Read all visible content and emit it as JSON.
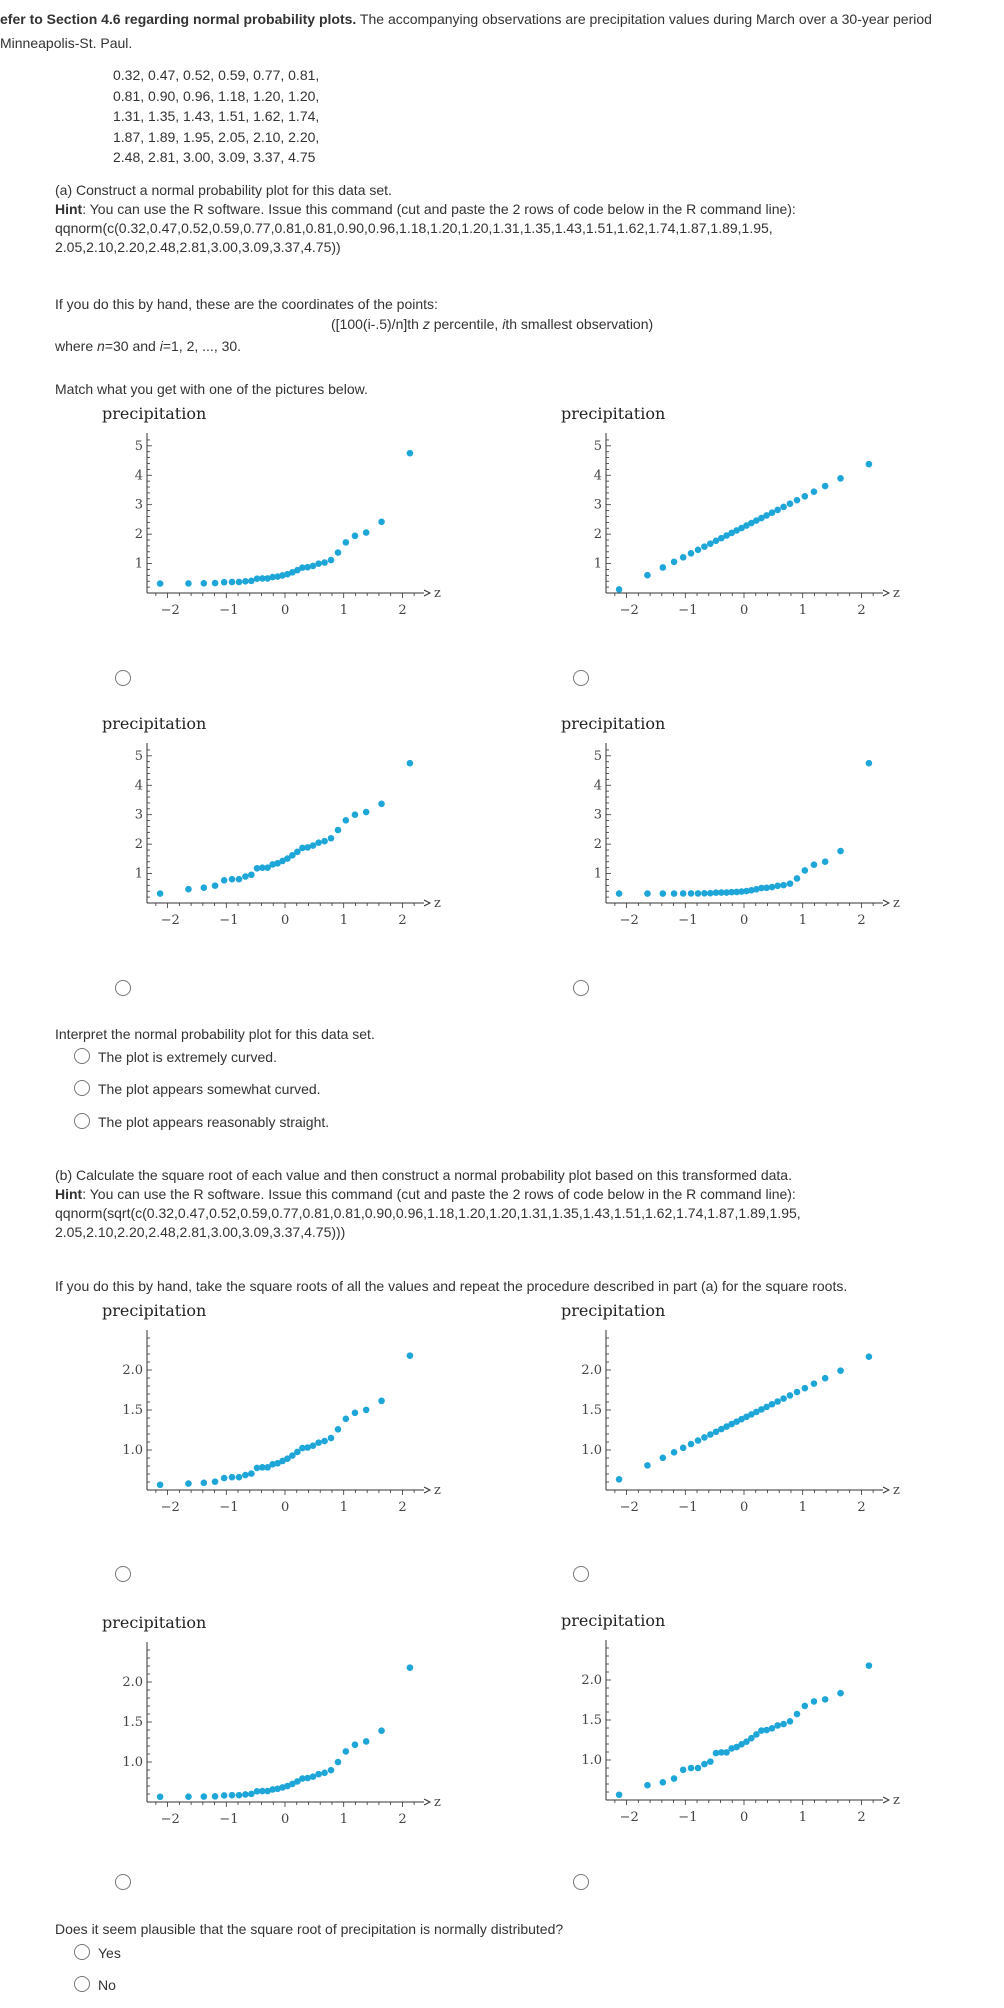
{
  "intro": {
    "bold": "efer to Section 4.6 regarding normal probability plots.",
    "rest": " The accompanying observations are precipitation values during March over a 30-year period",
    "line2": " Minneapolis-St. Paul."
  },
  "data_lines": [
    "0.32, 0.47, 0.52, 0.59, 0.77, 0.81,",
    "0.81, 0.90, 0.96, 1.18, 1.20, 1.20,",
    "1.31, 1.35, 1.43, 1.51, 1.62, 1.74,",
    "1.87, 1.89, 1.95, 2.05, 2.10, 2.20,",
    "2.48, 2.81, 3.00, 3.09, 3.37, 4.75"
  ],
  "observations": [
    0.32,
    0.47,
    0.52,
    0.59,
    0.77,
    0.81,
    0.81,
    0.9,
    0.96,
    1.18,
    1.2,
    1.2,
    1.31,
    1.35,
    1.43,
    1.51,
    1.62,
    1.74,
    1.87,
    1.89,
    1.95,
    2.05,
    2.1,
    2.2,
    2.48,
    2.81,
    3.0,
    3.09,
    3.37,
    4.75
  ],
  "part_a": {
    "title": "(a) Construct a normal probability plot for this data set.",
    "hint_label": "Hint",
    "hint_text": ": You can use the R software. Issue this command (cut and paste the 2 rows of code below in the R command line):",
    "code1": "qqnorm(c(0.32,0.47,0.52,0.59,0.77,0.81,0.81,0.90,0.96,1.18,1.20,1.20,1.31,1.35,1.43,1.51,1.62,1.74,1.87,1.89,1.95,",
    "code2": "2.05,2.10,2.20,2.48,2.81,3.00,3.09,3.37,4.75))",
    "byhand": "If you do this by hand, these are the coordinates of the points:",
    "coords_a": "([100(i-.5)/n]th ",
    "coords_z": "z",
    "coords_b": " percentile, ",
    "coords_i": "i",
    "coords_c": "th smallest observation)",
    "where_a": "where ",
    "where_n": "n",
    "where_b": "=30 and ",
    "where_i": "i",
    "where_c": "=1, 2, ..., 30.",
    "match": "Match what you get with one of the pictures below.",
    "interpret": "Interpret the normal probability plot for this data set.",
    "options": [
      "The plot is extremely curved.",
      "The plot appears somewhat curved.",
      "The plot appears reasonably straight."
    ]
  },
  "part_b": {
    "title": "(b) Calculate the square root of each value and then construct a normal probability plot based on this transformed data.",
    "hint_label": "Hint",
    "hint_text": ": You can use the R software. Issue this command (cut and paste the 2 rows of code below in the R command line):",
    "code1": "qqnorm(sqrt(c(0.32,0.47,0.52,0.59,0.77,0.81,0.81,0.90,0.96,1.18,1.20,1.20,1.31,1.35,1.43,1.51,1.62,1.74,1.87,1.89,1.95,",
    "code2": "2.05,2.10,2.20,2.48,2.81,3.00,3.09,3.37,4.75)))",
    "byhand": "If you do this by hand, take the square roots of all the values and repeat the procedure described in part (a) for the square roots.",
    "question": "Does it seem plausible that the square root of precipitation is normally distributed?",
    "options": [
      "Yes",
      "No"
    ]
  },
  "chart_data": [
    {
      "type": "scatter",
      "title": "precipitation",
      "xlabel": "z",
      "xlim": [
        -2.3,
        2.3
      ],
      "ylim": [
        0,
        5.3
      ],
      "yticks": [
        1,
        2,
        3,
        4,
        5
      ],
      "xticks": [
        -2,
        -1,
        0,
        1,
        2
      ],
      "variant": "extreme"
    },
    {
      "type": "scatter",
      "title": "precipitation",
      "xlabel": "z",
      "xlim": [
        -2.3,
        2.3
      ],
      "ylim": [
        0,
        5.3
      ],
      "yticks": [
        1,
        2,
        3,
        4,
        5
      ],
      "xticks": [
        -2,
        -1,
        0,
        1,
        2
      ],
      "variant": "straight"
    },
    {
      "type": "scatter",
      "title": "precipitation",
      "xlabel": "z",
      "xlim": [
        -2.3,
        2.3
      ],
      "ylim": [
        0,
        5.3
      ],
      "yticks": [
        1,
        2,
        3,
        4,
        5
      ],
      "xticks": [
        -2,
        -1,
        0,
        1,
        2
      ],
      "variant": "actual"
    },
    {
      "type": "scatter",
      "title": "precipitation",
      "xlabel": "z",
      "xlim": [
        -2.3,
        2.3
      ],
      "ylim": [
        0,
        5.3
      ],
      "yticks": [
        1,
        2,
        3,
        4,
        5
      ],
      "xticks": [
        -2,
        -1,
        0,
        1,
        2
      ],
      "variant": "very"
    },
    {
      "type": "scatter",
      "title": "precipitation",
      "xlabel": "z",
      "xlim": [
        -2.3,
        2.3
      ],
      "ylim": [
        0.5,
        2.45
      ],
      "yticks": [
        1.0,
        1.5,
        2.0
      ],
      "ytick_labels": [
        "1.0",
        "1.5",
        "2.0"
      ],
      "xticks": [
        -2,
        -1,
        0,
        1,
        2
      ],
      "variant": "sq_curved"
    },
    {
      "type": "scatter",
      "title": "precipitation",
      "xlabel": "z",
      "xlim": [
        -2.3,
        2.3
      ],
      "ylim": [
        0.5,
        2.45
      ],
      "yticks": [
        1.0,
        1.5,
        2.0
      ],
      "ytick_labels": [
        "1.0",
        "1.5",
        "2.0"
      ],
      "xticks": [
        -2,
        -1,
        0,
        1,
        2
      ],
      "variant": "sq_straight"
    },
    {
      "type": "scatter",
      "title": "precipitation",
      "xlabel": "z",
      "xlim": [
        -2.3,
        2.3
      ],
      "ylim": [
        0.5,
        2.45
      ],
      "yticks": [
        1.0,
        1.5,
        2.0
      ],
      "ytick_labels": [
        "1.0",
        "1.5",
        "2.0"
      ],
      "xticks": [
        -2,
        -1,
        0,
        1,
        2
      ],
      "variant": "sq_very"
    },
    {
      "type": "scatter",
      "title": "precipitation",
      "xlabel": "z",
      "xlim": [
        -2.3,
        2.3
      ],
      "ylim": [
        0.5,
        2.45
      ],
      "yticks": [
        1.0,
        1.5,
        2.0
      ],
      "ytick_labels": [
        "1.0",
        "1.5",
        "2.0"
      ],
      "xticks": [
        -2,
        -1,
        0,
        1,
        2
      ],
      "variant": "sq_actual"
    }
  ],
  "colors": {
    "point": "#1ea6d8",
    "axis": "#333333"
  }
}
